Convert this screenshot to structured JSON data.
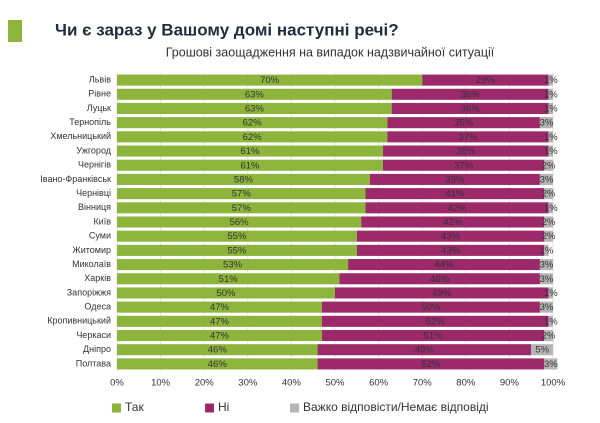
{
  "chart_data": {
    "type": "stacked-bar-horizontal",
    "title": "Чи є зараз у Вашому домі наступні речі?",
    "subtitle": "Грошові заощадження на випадок надзвичайної ситуації",
    "categories": [
      "Львів",
      "Рівне",
      "Луцьк",
      "Тернопіль",
      "Хмельницький",
      "Ужгород",
      "Чернігів",
      "Івано-Франківськ",
      "Чернівці",
      "Вінниця",
      "Київ",
      "Суми",
      "Житомир",
      "Миколаїв",
      "Харків",
      "Запоріжжя",
      "Одеса",
      "Кропивницький",
      "Черкаси",
      "Дніпро",
      "Полтава"
    ],
    "series": [
      {
        "name": "Так",
        "color": "#8db53c",
        "values": [
          70,
          63,
          63,
          62,
          62,
          61,
          61,
          58,
          57,
          57,
          56,
          55,
          55,
          53,
          51,
          50,
          47,
          47,
          47,
          46,
          46
        ],
        "value_labels": [
          "70%",
          "63%",
          "63%",
          "62%",
          "62%",
          "61%",
          "61%",
          "58%",
          "57%",
          "57%",
          "56%",
          "55%",
          "55%",
          "53%",
          "51%",
          "50%",
          "47%",
          "47%",
          "47%",
          "46%",
          "46%"
        ]
      },
      {
        "name": "Ні",
        "color": "#9c2a6b",
        "values": [
          29,
          36,
          36,
          35,
          37,
          38,
          37,
          39,
          41,
          42,
          42,
          43,
          43,
          44,
          46,
          49,
          50,
          52,
          51,
          49,
          52
        ],
        "value_labels": [
          "29%",
          "36%",
          "36%",
          "35%",
          "37%",
          "38%",
          "37%",
          "39%",
          "41%",
          "42%",
          "42%",
          "43%",
          "43%",
          "44%",
          "46%",
          "49%",
          "50%",
          "52%",
          "51%",
          "49%",
          "52%"
        ]
      },
      {
        "name": "Важко відповісти/Немає відповіді",
        "color": "#b5b5b5",
        "values": [
          1,
          1,
          1,
          3,
          1,
          1,
          2,
          3,
          2,
          1,
          2,
          2,
          1,
          3,
          3,
          1,
          3,
          1,
          2,
          5,
          3
        ],
        "value_labels": [
          "1%",
          "1%",
          "1%",
          "3%",
          "1%",
          "1%",
          "2%",
          "3%",
          "2%",
          "1%",
          "2%",
          "2%",
          "1%",
          "3%",
          "3%",
          "1%",
          "3%",
          "1%",
          "2%",
          "5%",
          "3%"
        ]
      }
    ],
    "xlim": [
      0,
      100
    ],
    "xticks": [
      {
        "value": 0,
        "label": "0%"
      },
      {
        "value": 10,
        "label": "10%"
      },
      {
        "value": 20,
        "label": "20%"
      },
      {
        "value": 30,
        "label": "30%"
      },
      {
        "value": 40,
        "label": "40%"
      },
      {
        "value": 50,
        "label": "50%"
      },
      {
        "value": 60,
        "label": "60%"
      },
      {
        "value": 70,
        "label": "70%"
      },
      {
        "value": 80,
        "label": "80%"
      },
      {
        "value": 90,
        "label": "90%"
      },
      {
        "value": 100,
        "label": "100%"
      }
    ],
    "grid": true,
    "legend": "bottom"
  }
}
